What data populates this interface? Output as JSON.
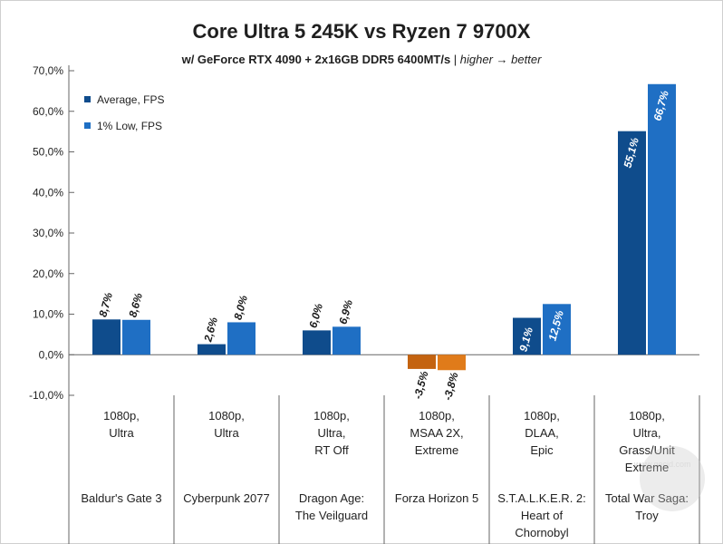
{
  "chart_data": {
    "type": "bar",
    "title": "Core Ultra 5 245K vs Ryzen 7 9700X",
    "subtitle_bold": "w/ GeForce RTX 4090 + 2x16GB DDR5 6400MT/s",
    "subtitle_sep": " | ",
    "subtitle_italic": "higher → better",
    "ylim": [
      -10,
      70
    ],
    "yticks": [
      -10,
      0,
      10,
      20,
      30,
      40,
      50,
      60,
      70
    ],
    "ytick_labels": [
      "-10,0%",
      "0,0%",
      "10,0%",
      "20,0%",
      "30,0%",
      "40,0%",
      "50,0%",
      "60,0%",
      "70,0%"
    ],
    "legend_position": "top-left",
    "categories": [
      {
        "settings": [
          "1080p,",
          "Ultra"
        ],
        "game": [
          "Baldur's Gate 3"
        ]
      },
      {
        "settings": [
          "1080p,",
          "Ultra"
        ],
        "game": [
          "Cyberpunk 2077"
        ]
      },
      {
        "settings": [
          "1080p,",
          "Ultra,",
          "RT Off"
        ],
        "game": [
          "Dragon Age:",
          "The Veilguard"
        ]
      },
      {
        "settings": [
          "1080p,",
          "MSAA 2X,",
          "Extreme"
        ],
        "game": [
          "Forza Horizon 5"
        ]
      },
      {
        "settings": [
          "1080p,",
          "DLAA,",
          "Epic"
        ],
        "game": [
          "S.T.A.L.K.E.R. 2:",
          "Heart of",
          "Chornobyl"
        ]
      },
      {
        "settings": [
          "1080p,",
          "Ultra,",
          "Grass/Unit",
          "Extreme"
        ],
        "game": [
          "Total War Saga:",
          "Troy"
        ]
      }
    ],
    "series": [
      {
        "name": "Average, FPS",
        "values": [
          8.7,
          2.6,
          6.0,
          -3.5,
          9.1,
          55.1
        ],
        "labels": [
          "8,7%",
          "2,6%",
          "6,0%",
          "-3,5%",
          "9,1%",
          "55,1%"
        ]
      },
      {
        "name": "1% Low, FPS",
        "values": [
          8.6,
          8.0,
          6.9,
          -3.8,
          12.5,
          66.7
        ],
        "labels": [
          "8,6%",
          "8,0%",
          "6,9%",
          "-3,8%",
          "12,5%",
          "66,7%"
        ]
      }
    ],
    "colors": {
      "series_positive": [
        "#0f4c8c",
        "#1f6fc4"
      ],
      "series_negative": [
        "#c46310",
        "#e07b1a"
      ]
    }
  },
  "watermark": "www.gecid.com"
}
